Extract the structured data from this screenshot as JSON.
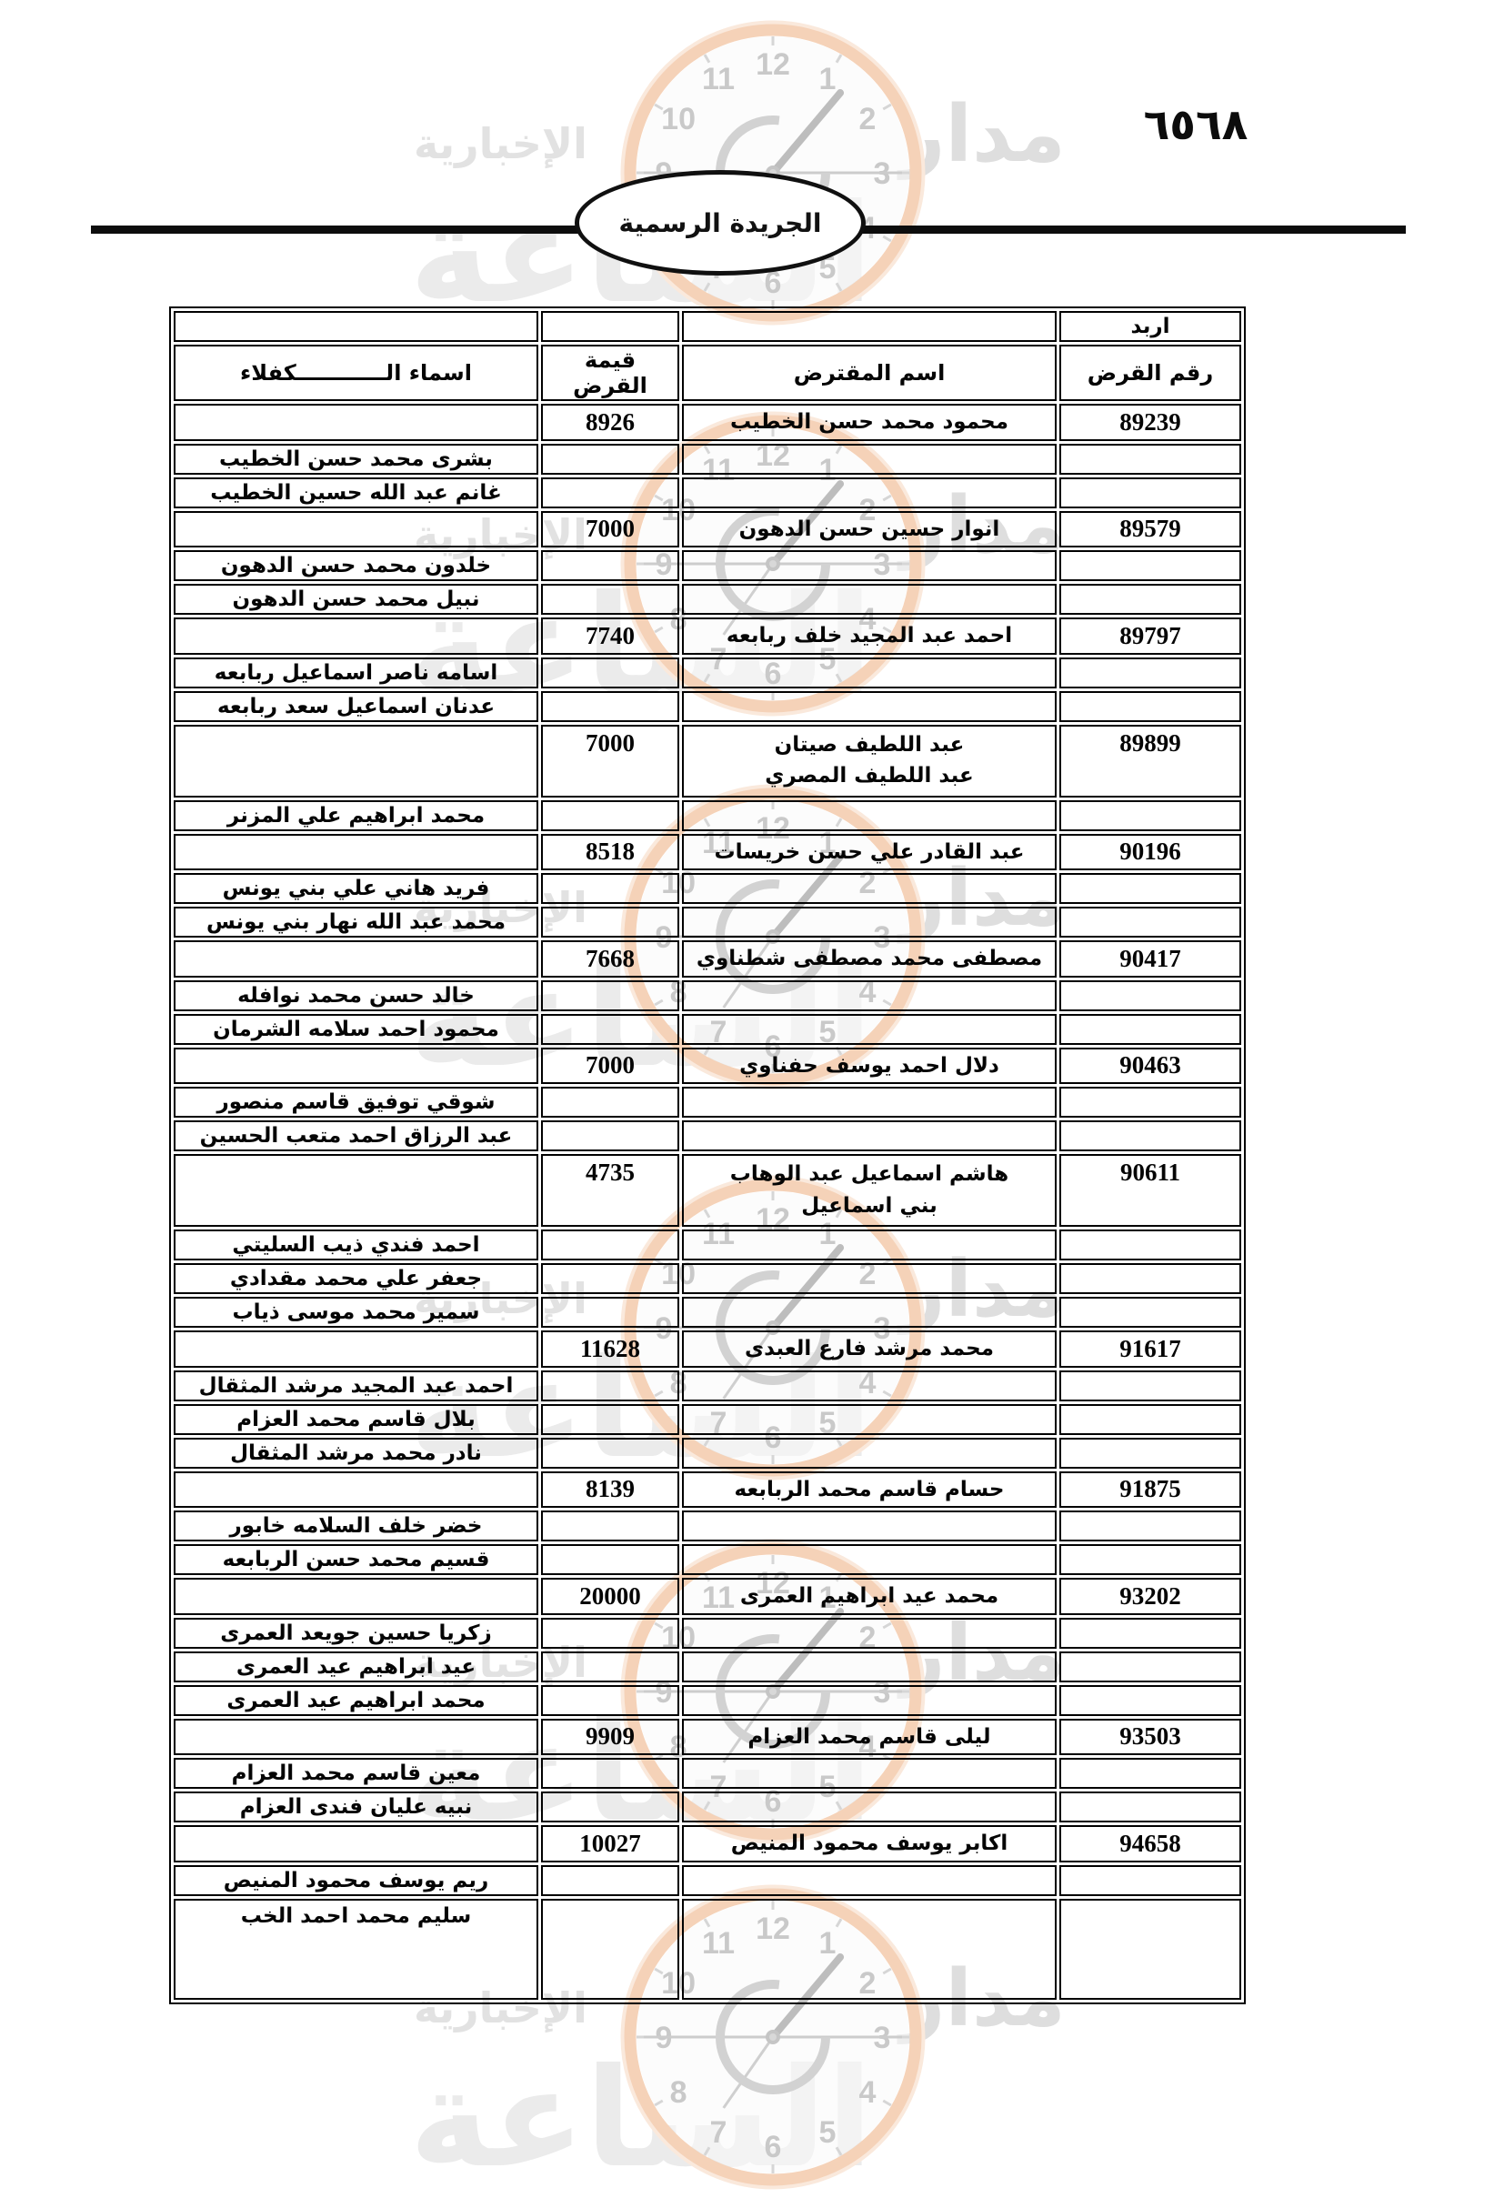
{
  "header": {
    "page_number": "٦٥٦٨",
    "gazette_title": "الجريدة الرسمية"
  },
  "watermark": {
    "brand_word_1": "مدار",
    "brand_word_2": "الساعة",
    "brand_word_3": "الإخبارية",
    "clock_numerals": [
      "1",
      "2",
      "3",
      "4",
      "5",
      "6",
      "7",
      "8",
      "9",
      "10",
      "11",
      "12"
    ]
  },
  "table": {
    "region_label": "اربد",
    "columns": [
      {
        "key": "loan_no",
        "label": "رقم القرض"
      },
      {
        "key": "borrower",
        "label": "اسم المقترض"
      },
      {
        "key": "amount",
        "label": "قيمة القرض"
      },
      {
        "key": "guarantor",
        "label": "اسماء الــــــــــــكفلاء"
      }
    ],
    "entries": [
      {
        "loan_no": "89239",
        "borrower": "محمود محمد حسن الخطيب",
        "amount": "8926",
        "guarantors": [
          "بشرى محمد حسن الخطيب",
          "غانم عبد الله حسين الخطيب"
        ]
      },
      {
        "loan_no": "89579",
        "borrower": "انوار حسين حسن الدهون",
        "amount": "7000",
        "guarantors": [
          "خلدون محمد حسن الدهون",
          "نبيل محمد حسن الدهون"
        ]
      },
      {
        "loan_no": "89797",
        "borrower": "احمد عبد المجيد خلف ربابعه",
        "amount": "7740",
        "guarantors": [
          "اسامه ناصر اسماعيل ربابعه",
          "عدنان اسماعيل سعد ربابعه"
        ]
      },
      {
        "loan_no": "89899",
        "borrower": "عبد اللطيف صيتان\nعبد اللطيف المصري",
        "amount": "7000",
        "guarantors": [
          "محمد ابراهيم علي المزنر"
        ]
      },
      {
        "loan_no": "90196",
        "borrower": "عبد القادر علي حسن خريسات",
        "amount": "8518",
        "guarantors": [
          "فريد هاني علي بني يونس",
          "محمد عبد الله نهار بني  يونس"
        ]
      },
      {
        "loan_no": "90417",
        "borrower": "مصطفى محمد مصطفى شطناوي",
        "amount": "7668",
        "guarantors": [
          "خالد حسن محمد نوافله",
          "محمود احمد سلامه الشرمان"
        ]
      },
      {
        "loan_no": "90463",
        "borrower": "دلال احمد يوسف حفناوي",
        "amount": "7000",
        "guarantors": [
          "شوقي توفيق قاسم منصور",
          "عبد الرزاق احمد متعب الحسين"
        ]
      },
      {
        "loan_no": "90611",
        "borrower": "هاشم اسماعيل عبد الوهاب\nبني اسماعيل",
        "amount": "4735",
        "guarantors": [
          "احمد فندي ذيب السليتي",
          "جعفر علي محمد مقدادي",
          "سمير محمد موسى ذياب"
        ]
      },
      {
        "loan_no": "91617",
        "borrower": "محمد مرشد فارع العبدى",
        "amount": "11628",
        "guarantors": [
          "احمد عبد المجيد مرشد المثقال",
          "بلال قاسم محمد العزام",
          "نادر محمد مرشد المثقال"
        ]
      },
      {
        "loan_no": "91875",
        "borrower": "حسام قاسم محمد الربابعه",
        "amount": "8139",
        "guarantors": [
          "خضر خلف السلامه خابور",
          "قسيم محمد حسن الربابعه"
        ]
      },
      {
        "loan_no": "93202",
        "borrower": "محمد عيد ابراهيم العمرى",
        "amount": "20000",
        "guarantors": [
          "زكريا حسين جويعد العمرى",
          "عيد ابراهيم عيد العمرى",
          "محمد ابراهيم عيد العمرى"
        ]
      },
      {
        "loan_no": "93503",
        "borrower": "ليلى قاسم محمد العزام",
        "amount": "9909",
        "guarantors": [
          "معين قاسم محمد العزام",
          "نبيه عليان فندى العزام"
        ]
      },
      {
        "loan_no": "94658",
        "borrower": "اكابر يوسف محمود المنيص",
        "amount": "10027",
        "guarantors": [
          "ريم يوسف محمود المنيص",
          "سليم محمد احمد الخب"
        ]
      }
    ]
  }
}
